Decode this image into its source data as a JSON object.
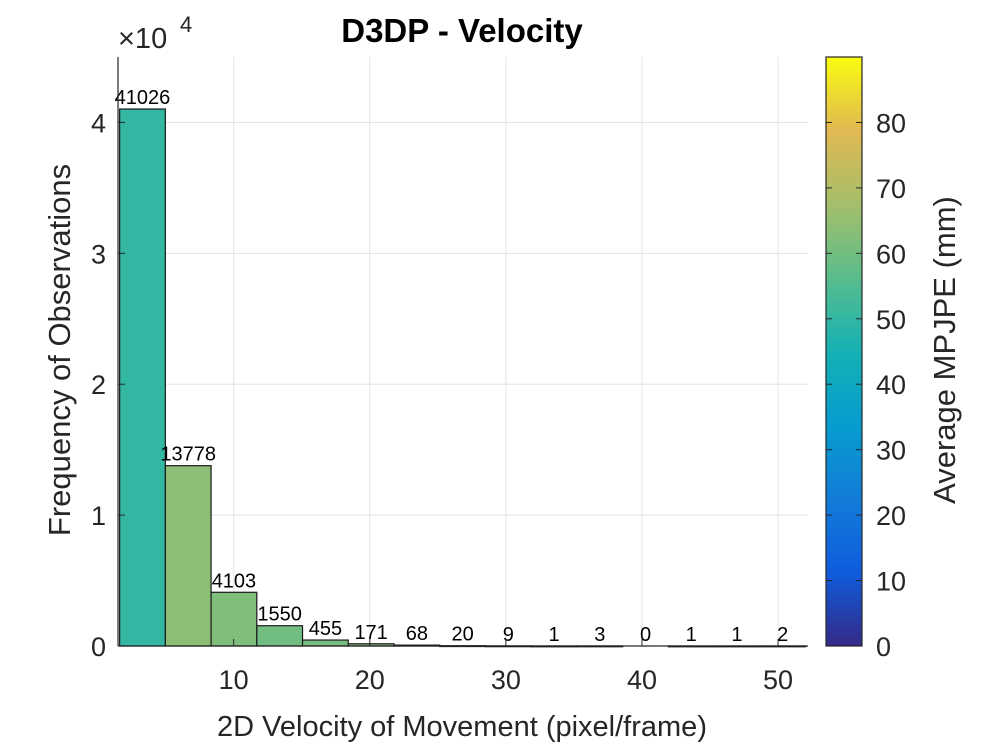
{
  "chart_data": {
    "type": "bar",
    "title": "D3DP - Velocity",
    "xlabel": "2D Velocity of Movement (pixel/frame)",
    "ylabel": "Frequency of Observations",
    "y_exponent_label": "×10",
    "y_exponent": "4",
    "xlim": [
      1.5,
      52.2
    ],
    "ylim": [
      0,
      45000
    ],
    "x_ticks": [
      10,
      20,
      30,
      40,
      50
    ],
    "y_ticks": [
      0,
      10000,
      20000,
      30000,
      40000
    ],
    "y_tick_labels": [
      "0",
      "1",
      "2",
      "3",
      "4"
    ],
    "grid": true,
    "bins": [
      {
        "x0": 1.62,
        "x1": 4.98,
        "count": 41026,
        "mpjpe": 50
      },
      {
        "x0": 4.98,
        "x1": 8.34,
        "count": 13778,
        "mpjpe": 64
      },
      {
        "x0": 8.34,
        "x1": 11.7,
        "count": 4103,
        "mpjpe": 62
      },
      {
        "x0": 11.7,
        "x1": 15.06,
        "count": 1550,
        "mpjpe": 60
      },
      {
        "x0": 15.06,
        "x1": 18.42,
        "count": 455,
        "mpjpe": 61
      },
      {
        "x0": 18.42,
        "x1": 21.78,
        "count": 171,
        "mpjpe": 62
      },
      {
        "x0": 21.78,
        "x1": 25.14,
        "count": 68,
        "mpjpe": 63
      },
      {
        "x0": 25.14,
        "x1": 28.5,
        "count": 20,
        "mpjpe": 62
      },
      {
        "x0": 28.5,
        "x1": 31.86,
        "count": 9,
        "mpjpe": 60
      },
      {
        "x0": 31.86,
        "x1": 35.22,
        "count": 1,
        "mpjpe": 58
      },
      {
        "x0": 35.22,
        "x1": 38.58,
        "count": 3,
        "mpjpe": 57
      },
      {
        "x0": 38.58,
        "x1": 41.94,
        "count": 0,
        "mpjpe": 0
      },
      {
        "x0": 41.94,
        "x1": 45.3,
        "count": 1,
        "mpjpe": 56
      },
      {
        "x0": 45.3,
        "x1": 48.66,
        "count": 1,
        "mpjpe": 56
      },
      {
        "x0": 48.66,
        "x1": 52.02,
        "count": 2,
        "mpjpe": 55
      }
    ],
    "colorbar": {
      "label": "Average MPJPE (mm)",
      "lim": [
        0,
        90
      ],
      "ticks": [
        0,
        10,
        20,
        30,
        40,
        50,
        60,
        70,
        80
      ],
      "colormap": "parula"
    }
  }
}
